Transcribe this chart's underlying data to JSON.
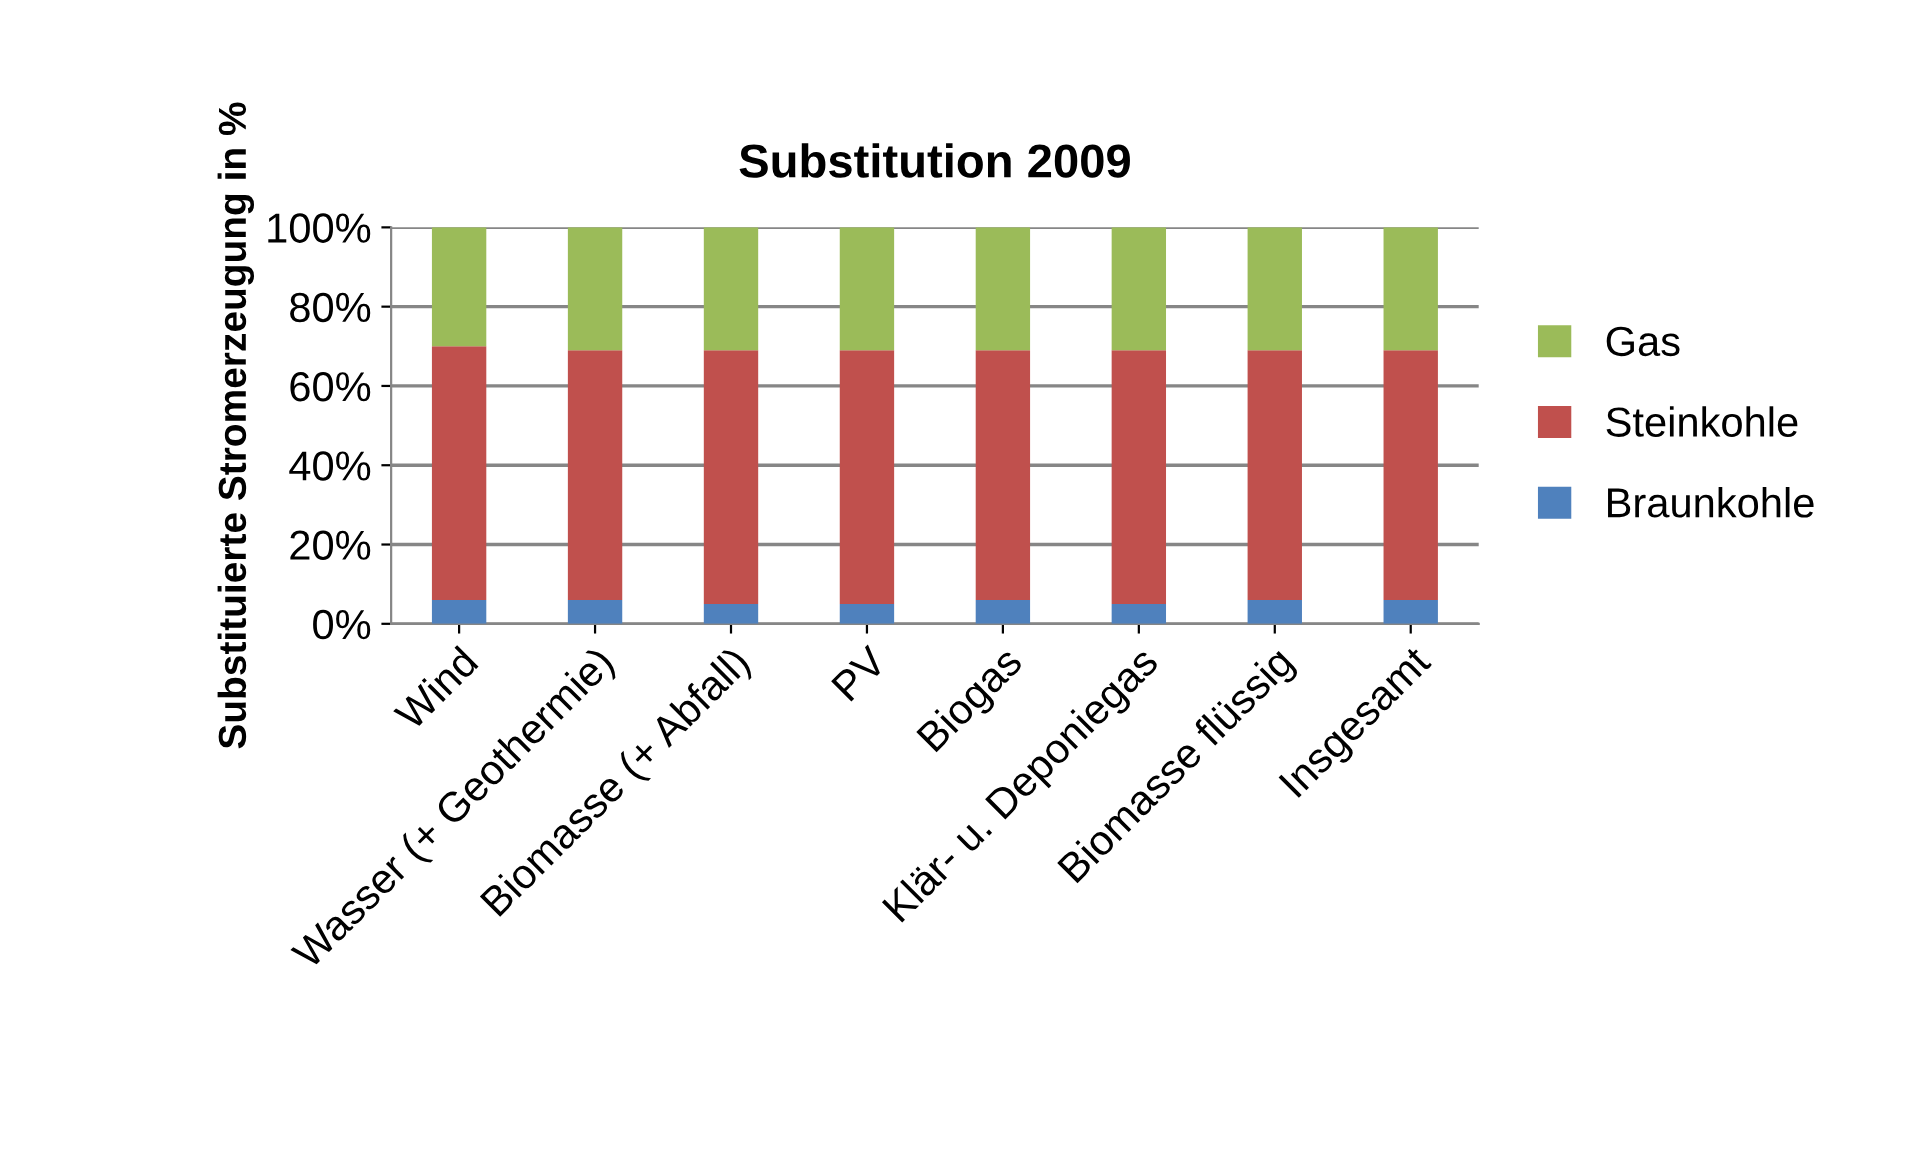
{
  "chart_data": {
    "type": "bar",
    "title": "Substitution 2009",
    "ylabel": "Substituierte Stromerzeugung in %",
    "stacked": true,
    "legend": "right",
    "grid": "y",
    "categories": [
      "Wind",
      "Wasser (+ Geothermie)",
      "Biomasse (+ Abfall)",
      "PV",
      "Biogas",
      "Klär- u. Deponiegas",
      "Biomasse flüssig",
      "Insgesamt"
    ],
    "series": [
      {
        "name": "Braunkohle",
        "color": "#4f81bd",
        "values": [
          6,
          6,
          5,
          5,
          6,
          5,
          6,
          6
        ]
      },
      {
        "name": "Steinkohle",
        "color": "#c0504d",
        "values": [
          64,
          63,
          64,
          64,
          63,
          64,
          63,
          63
        ]
      },
      {
        "name": "Gas",
        "color": "#9bbb59",
        "values": [
          30,
          31,
          31,
          31,
          31,
          31,
          31,
          31
        ]
      }
    ],
    "ylim": [
      0,
      100
    ],
    "yticks": [
      {
        "value": 0,
        "label": "0%"
      },
      {
        "value": 20,
        "label": "20%"
      },
      {
        "value": 40,
        "label": "40%"
      },
      {
        "value": 60,
        "label": "60%"
      },
      {
        "value": 80,
        "label": "80%"
      },
      {
        "value": 100,
        "label": "100%"
      }
    ]
  }
}
